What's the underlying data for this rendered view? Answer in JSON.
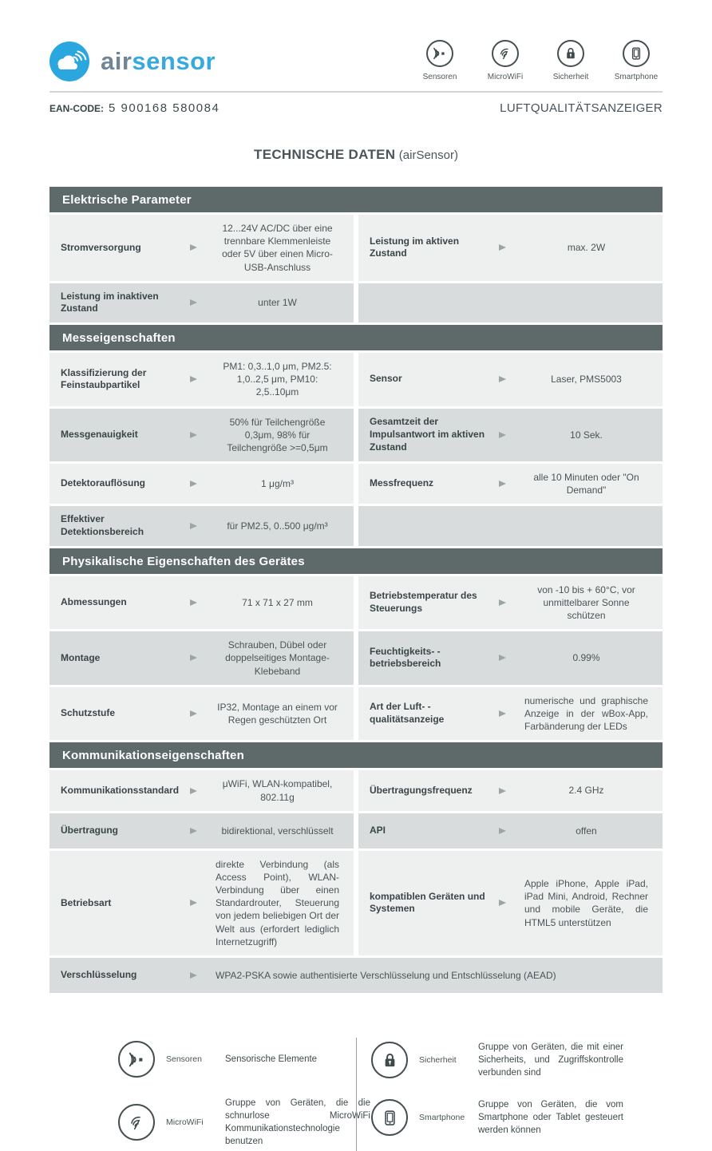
{
  "logo": {
    "air": "air",
    "sensor": "sensor",
    "brand_blue": "#36a9e1",
    "circle_blue": "#2ba7df"
  },
  "header_icons": [
    {
      "icon": "sensors-icon",
      "label": "Sensoren"
    },
    {
      "icon": "microwifi-icon",
      "label": "MicroWiFi"
    },
    {
      "icon": "lock-icon",
      "label": "Sicherheit"
    },
    {
      "icon": "smartphone-icon",
      "label": "Smartphone"
    }
  ],
  "ean": {
    "label": "EAN-CODE:",
    "value": "5  900168  580084"
  },
  "doc_type": "LUFTQUALITÄTSANZEIGER",
  "title": {
    "main": "TECHNISCHE DATEN",
    "suffix": "(airSensor)"
  },
  "colors": {
    "section_header_bg": "#5e6a6a",
    "row_light": "#eef0f0",
    "row_dark": "#d9dcdc",
    "arrow": "#9ba5a5"
  },
  "sections": [
    {
      "title": "Elektrische Parameter",
      "rows": [
        {
          "left": {
            "label": "Stromversorgung",
            "value": "12...24V AC/DC über eine trennbare Klemmenleiste oder 5V über einen Micro-USB-Anschluss"
          },
          "right": {
            "label": "Leistung im aktiven Zustand",
            "value": "max. 2W"
          }
        },
        {
          "left": {
            "label": "Leistung im inaktiven Zustand",
            "value": "unter 1W"
          },
          "right": null
        }
      ]
    },
    {
      "title": "Messeigenschaften",
      "rows": [
        {
          "left": {
            "label": "Klassifizierung der Feinstaubpartikel",
            "value": "PM1: 0,3..1,0 μm, PM2.5: 1,0..2,5 μm, PM10: 2,5..10μm"
          },
          "right": {
            "label": "Sensor",
            "value": "Laser, PMS5003"
          }
        },
        {
          "left": {
            "label": "Messgenauigkeit",
            "value": "50% für Teilchengröße 0,3μm, 98% für Teilchengröße >=0,5μm"
          },
          "right": {
            "label": "Gesamtzeit der Impulsantwort im aktiven Zustand",
            "value": "10 Sek."
          }
        },
        {
          "left": {
            "label": "Detektorauflösung",
            "value": "1 μg/m³"
          },
          "right": {
            "label": "Messfrequenz",
            "value": "alle 10 Minuten oder \"On Demand\""
          }
        },
        {
          "left": {
            "label": "Effektiver Detektionsbereich",
            "value": "für PM2.5, 0..500 μg/m³"
          },
          "right": null
        }
      ]
    },
    {
      "title": "Physikalische Eigenschaften des Gerätes",
      "rows": [
        {
          "left": {
            "label": "Abmessungen",
            "value": "71 x 71 x 27 mm"
          },
          "right": {
            "label": "Betriebstemperatur des Steuerungs",
            "value": "von -10 bis + 60°C, vor unmittelbarer Sonne schützen"
          }
        },
        {
          "left": {
            "label": "Montage",
            "value": "Schrauben, Dübel oder doppelseitiges Montage-Klebeband"
          },
          "right": {
            "label": "Feuchtigkeits- -betriebsbereich",
            "value": "0.99%"
          }
        },
        {
          "left": {
            "label": "Schutzstufe",
            "value": "IP32, Montage an einem vor Regen geschützten Ort"
          },
          "right": {
            "label": "Art der Luft- -qualitätsanzeige",
            "value": "numerische und graphische Anzeige in der wBox-App, Farbänderung der LEDs",
            "justify": true
          }
        }
      ]
    },
    {
      "title": "Kommunikationseigenschaften",
      "rows": [
        {
          "left": {
            "label": "Kommunikationsstandard",
            "value": "μWiFi, WLAN-kompatibel, 802.11g"
          },
          "right": {
            "label": "Übertragungsfrequenz",
            "value": "2.4 GHz"
          }
        },
        {
          "left": {
            "label": "Übertragung",
            "value": "bidirektional, verschlüsselt"
          },
          "right": {
            "label": "API",
            "value": "offen"
          }
        },
        {
          "left": {
            "label": "Betriebsart",
            "value": "direkte Verbindung (als Access Point), WLAN-Verbindung über einen Standardrouter, Steuerung von jedem beliebigen Ort der Welt aus (erfordert lediglich Internetzugriff)",
            "justify": true
          },
          "right": {
            "label": "kompatiblen Geräten und Systemen",
            "value": "Apple iPhone, Apple iPad, iPad Mini, Android, Rechner und mobile Geräte, die HTML5 unterstützen",
            "justify": true
          }
        },
        {
          "full": true,
          "left": {
            "label": "Verschlüsselung",
            "value": "WPA2-PSKA sowie authentisierte Verschlüsselung und Entschlüsselung (AEAD)"
          }
        }
      ]
    }
  ],
  "legend": [
    {
      "icon": "sensors-icon",
      "label": "Sensoren",
      "text": "Sensorische Elemente"
    },
    {
      "icon": "microwifi-icon",
      "label": "MicroWiFi",
      "text": "Gruppe von Geräten, die die schnurlose MicroWiFi Kommunikationstechnologie benutzen"
    },
    {
      "icon": "lock-icon",
      "label": "Sicherheit",
      "text": "Gruppe von Geräten, die mit einer Sicherheits, und Zugriffskontrolle verbunden sind"
    },
    {
      "icon": "smartphone-icon",
      "label": "Smartphone",
      "text": "Gruppe von Geräten, die vom Smartphone oder Tablet gesteuert werden können"
    }
  ]
}
